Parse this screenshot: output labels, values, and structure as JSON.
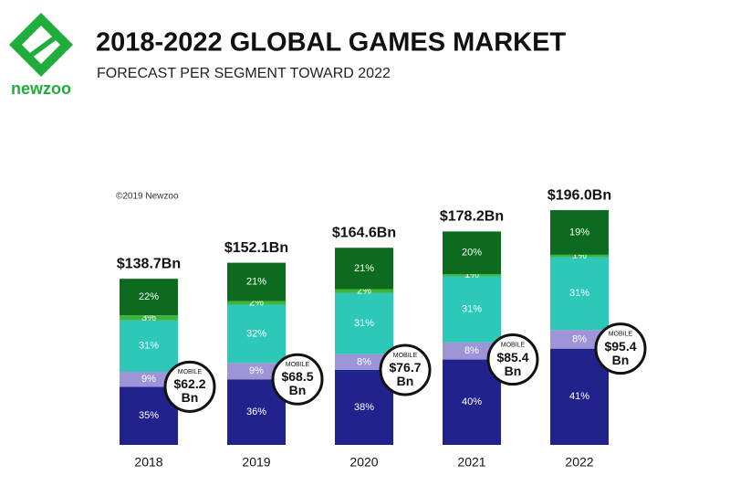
{
  "brand": "newzoo",
  "chart_data": {
    "type": "stacked-bar",
    "title": "2018-2022 GLOBAL GAMES MARKET",
    "subtitle": "FORECAST PER SEGMENT TOWARD 2022",
    "source": "©2019 Newzoo",
    "categories": [
      "2018",
      "2019",
      "2020",
      "2021",
      "2022"
    ],
    "totals": {
      "values": [
        138.7,
        152.1,
        164.6,
        178.2,
        196.0
      ],
      "value_labels": [
        "$138.7Bn",
        "$152.1Bn",
        "$164.6Bn",
        "$178.2Bn",
        "$196.0Bn"
      ]
    },
    "series": [
      {
        "color": "#22228c",
        "values": [
          35,
          36,
          38,
          40,
          41
        ],
        "value_labels": [
          "35%",
          "36%",
          "38%",
          "40%",
          "41%"
        ]
      },
      {
        "color": "#9d95d8",
        "values": [
          9,
          9,
          8,
          8,
          8
        ],
        "value_labels": [
          "9%",
          "9%",
          "8%",
          "8%",
          "8%"
        ]
      },
      {
        "color": "#2ec8b8",
        "values": [
          31,
          32,
          31,
          31,
          31
        ],
        "value_labels": [
          "31%",
          "32%",
          "31%",
          "31%",
          "31%"
        ]
      },
      {
        "color": "#3db53d",
        "values": [
          3,
          2,
          2,
          1,
          1
        ],
        "value_labels": [
          "3%",
          "2%",
          "2%",
          "1%",
          "1%"
        ]
      },
      {
        "color": "#0c6b1e",
        "values": [
          22,
          21,
          21,
          20,
          19
        ],
        "value_labels": [
          "22%",
          "21%",
          "21%",
          "20%",
          "19%"
        ]
      }
    ],
    "mobile": {
      "label": "MOBILE",
      "values": [
        62.2,
        68.5,
        76.7,
        85.4,
        95.4
      ],
      "value_labels": [
        "$62.2\nBn",
        "$68.5\nBn",
        "$76.7\nBn",
        "$85.4\nBn",
        "$95.4\nBn"
      ]
    }
  }
}
